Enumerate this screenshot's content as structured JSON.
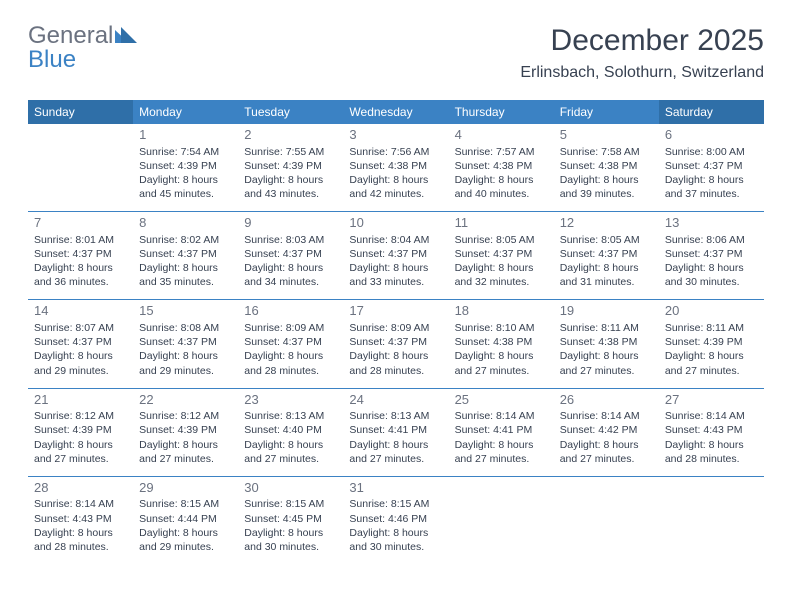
{
  "brand": {
    "word1": "General",
    "word2": "Blue"
  },
  "colors": {
    "weekday_header_bg": "#3b82c4",
    "weekend_header_bg": "#2f6fa8",
    "header_fg": "#ffffff",
    "border": "#3b82c4",
    "text": "#374151",
    "daynum": "#6b7280"
  },
  "title": "December 2025",
  "location": "Erlinsbach, Solothurn, Switzerland",
  "day_headers": [
    "Sunday",
    "Monday",
    "Tuesday",
    "Wednesday",
    "Thursday",
    "Friday",
    "Saturday"
  ],
  "weeks": [
    [
      null,
      {
        "n": "1",
        "sr": "Sunrise: 7:54 AM",
        "ss": "Sunset: 4:39 PM",
        "d1": "Daylight: 8 hours",
        "d2": "and 45 minutes."
      },
      {
        "n": "2",
        "sr": "Sunrise: 7:55 AM",
        "ss": "Sunset: 4:39 PM",
        "d1": "Daylight: 8 hours",
        "d2": "and 43 minutes."
      },
      {
        "n": "3",
        "sr": "Sunrise: 7:56 AM",
        "ss": "Sunset: 4:38 PM",
        "d1": "Daylight: 8 hours",
        "d2": "and 42 minutes."
      },
      {
        "n": "4",
        "sr": "Sunrise: 7:57 AM",
        "ss": "Sunset: 4:38 PM",
        "d1": "Daylight: 8 hours",
        "d2": "and 40 minutes."
      },
      {
        "n": "5",
        "sr": "Sunrise: 7:58 AM",
        "ss": "Sunset: 4:38 PM",
        "d1": "Daylight: 8 hours",
        "d2": "and 39 minutes."
      },
      {
        "n": "6",
        "sr": "Sunrise: 8:00 AM",
        "ss": "Sunset: 4:37 PM",
        "d1": "Daylight: 8 hours",
        "d2": "and 37 minutes."
      }
    ],
    [
      {
        "n": "7",
        "sr": "Sunrise: 8:01 AM",
        "ss": "Sunset: 4:37 PM",
        "d1": "Daylight: 8 hours",
        "d2": "and 36 minutes."
      },
      {
        "n": "8",
        "sr": "Sunrise: 8:02 AM",
        "ss": "Sunset: 4:37 PM",
        "d1": "Daylight: 8 hours",
        "d2": "and 35 minutes."
      },
      {
        "n": "9",
        "sr": "Sunrise: 8:03 AM",
        "ss": "Sunset: 4:37 PM",
        "d1": "Daylight: 8 hours",
        "d2": "and 34 minutes."
      },
      {
        "n": "10",
        "sr": "Sunrise: 8:04 AM",
        "ss": "Sunset: 4:37 PM",
        "d1": "Daylight: 8 hours",
        "d2": "and 33 minutes."
      },
      {
        "n": "11",
        "sr": "Sunrise: 8:05 AM",
        "ss": "Sunset: 4:37 PM",
        "d1": "Daylight: 8 hours",
        "d2": "and 32 minutes."
      },
      {
        "n": "12",
        "sr": "Sunrise: 8:05 AM",
        "ss": "Sunset: 4:37 PM",
        "d1": "Daylight: 8 hours",
        "d2": "and 31 minutes."
      },
      {
        "n": "13",
        "sr": "Sunrise: 8:06 AM",
        "ss": "Sunset: 4:37 PM",
        "d1": "Daylight: 8 hours",
        "d2": "and 30 minutes."
      }
    ],
    [
      {
        "n": "14",
        "sr": "Sunrise: 8:07 AM",
        "ss": "Sunset: 4:37 PM",
        "d1": "Daylight: 8 hours",
        "d2": "and 29 minutes."
      },
      {
        "n": "15",
        "sr": "Sunrise: 8:08 AM",
        "ss": "Sunset: 4:37 PM",
        "d1": "Daylight: 8 hours",
        "d2": "and 29 minutes."
      },
      {
        "n": "16",
        "sr": "Sunrise: 8:09 AM",
        "ss": "Sunset: 4:37 PM",
        "d1": "Daylight: 8 hours",
        "d2": "and 28 minutes."
      },
      {
        "n": "17",
        "sr": "Sunrise: 8:09 AM",
        "ss": "Sunset: 4:37 PM",
        "d1": "Daylight: 8 hours",
        "d2": "and 28 minutes."
      },
      {
        "n": "18",
        "sr": "Sunrise: 8:10 AM",
        "ss": "Sunset: 4:38 PM",
        "d1": "Daylight: 8 hours",
        "d2": "and 27 minutes."
      },
      {
        "n": "19",
        "sr": "Sunrise: 8:11 AM",
        "ss": "Sunset: 4:38 PM",
        "d1": "Daylight: 8 hours",
        "d2": "and 27 minutes."
      },
      {
        "n": "20",
        "sr": "Sunrise: 8:11 AM",
        "ss": "Sunset: 4:39 PM",
        "d1": "Daylight: 8 hours",
        "d2": "and 27 minutes."
      }
    ],
    [
      {
        "n": "21",
        "sr": "Sunrise: 8:12 AM",
        "ss": "Sunset: 4:39 PM",
        "d1": "Daylight: 8 hours",
        "d2": "and 27 minutes."
      },
      {
        "n": "22",
        "sr": "Sunrise: 8:12 AM",
        "ss": "Sunset: 4:39 PM",
        "d1": "Daylight: 8 hours",
        "d2": "and 27 minutes."
      },
      {
        "n": "23",
        "sr": "Sunrise: 8:13 AM",
        "ss": "Sunset: 4:40 PM",
        "d1": "Daylight: 8 hours",
        "d2": "and 27 minutes."
      },
      {
        "n": "24",
        "sr": "Sunrise: 8:13 AM",
        "ss": "Sunset: 4:41 PM",
        "d1": "Daylight: 8 hours",
        "d2": "and 27 minutes."
      },
      {
        "n": "25",
        "sr": "Sunrise: 8:14 AM",
        "ss": "Sunset: 4:41 PM",
        "d1": "Daylight: 8 hours",
        "d2": "and 27 minutes."
      },
      {
        "n": "26",
        "sr": "Sunrise: 8:14 AM",
        "ss": "Sunset: 4:42 PM",
        "d1": "Daylight: 8 hours",
        "d2": "and 27 minutes."
      },
      {
        "n": "27",
        "sr": "Sunrise: 8:14 AM",
        "ss": "Sunset: 4:43 PM",
        "d1": "Daylight: 8 hours",
        "d2": "and 28 minutes."
      }
    ],
    [
      {
        "n": "28",
        "sr": "Sunrise: 8:14 AM",
        "ss": "Sunset: 4:43 PM",
        "d1": "Daylight: 8 hours",
        "d2": "and 28 minutes."
      },
      {
        "n": "29",
        "sr": "Sunrise: 8:15 AM",
        "ss": "Sunset: 4:44 PM",
        "d1": "Daylight: 8 hours",
        "d2": "and 29 minutes."
      },
      {
        "n": "30",
        "sr": "Sunrise: 8:15 AM",
        "ss": "Sunset: 4:45 PM",
        "d1": "Daylight: 8 hours",
        "d2": "and 30 minutes."
      },
      {
        "n": "31",
        "sr": "Sunrise: 8:15 AM",
        "ss": "Sunset: 4:46 PM",
        "d1": "Daylight: 8 hours",
        "d2": "and 30 minutes."
      },
      null,
      null,
      null
    ]
  ]
}
